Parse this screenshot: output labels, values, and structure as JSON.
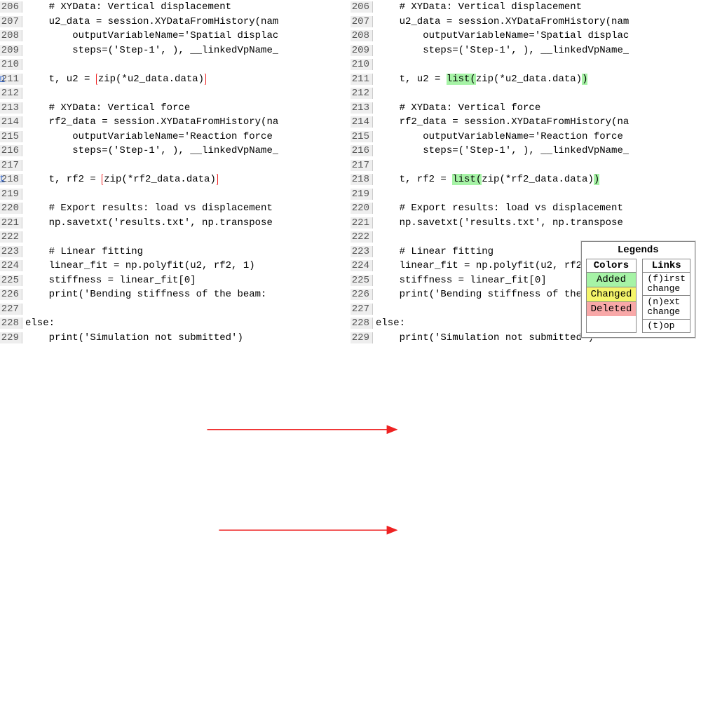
{
  "colors": {
    "added": "#a6f3a6",
    "changed": "#f5f56b",
    "deleted": "#f8a8a8",
    "circle": "#e22",
    "arrow": "#e22",
    "gutter_bg": "#eeeeee"
  },
  "left": {
    "lines": [
      {
        "no": 206,
        "segs": [
          {
            "t": "    # XYData: Vertical displacement"
          }
        ]
      },
      {
        "no": 207,
        "segs": [
          {
            "t": "    u2_data = session.XYDataFromHistory(nam"
          }
        ]
      },
      {
        "no": 208,
        "segs": [
          {
            "t": "        outputVariableName='Spatial displac"
          }
        ]
      },
      {
        "no": 209,
        "segs": [
          {
            "t": "        steps=('Step-1', ), __linkedVpName_"
          }
        ]
      },
      {
        "no": 210,
        "segs": [
          {
            "t": ""
          }
        ]
      },
      {
        "no": 211,
        "gutter": "n",
        "segs": [
          {
            "t": "    t, u2 = "
          },
          {
            "t": "zip(*u2_data.data)",
            "circled": true
          }
        ]
      },
      {
        "no": 212,
        "segs": [
          {
            "t": ""
          }
        ]
      },
      {
        "no": 213,
        "segs": [
          {
            "t": "    # XYData: Vertical force"
          }
        ]
      },
      {
        "no": 214,
        "segs": [
          {
            "t": "    rf2_data = session.XYDataFromHistory(na"
          }
        ]
      },
      {
        "no": 215,
        "segs": [
          {
            "t": "        outputVariableName='Reaction force "
          }
        ]
      },
      {
        "no": 216,
        "segs": [
          {
            "t": "        steps=('Step-1', ), __linkedVpName_"
          }
        ]
      },
      {
        "no": 217,
        "segs": [
          {
            "t": ""
          }
        ]
      },
      {
        "no": 218,
        "gutter": "t",
        "segs": [
          {
            "t": "    t, rf2 = "
          },
          {
            "t": "zip(*rf2_data.data)",
            "circled": true
          }
        ]
      },
      {
        "no": 219,
        "segs": [
          {
            "t": ""
          }
        ]
      },
      {
        "no": 220,
        "segs": [
          {
            "t": "    # Export results: load vs displacement"
          }
        ]
      },
      {
        "no": 221,
        "segs": [
          {
            "t": "    np.savetxt('results.txt', np.transpose"
          }
        ]
      },
      {
        "no": 222,
        "segs": [
          {
            "t": ""
          }
        ]
      },
      {
        "no": 223,
        "segs": [
          {
            "t": "    # Linear fitting"
          }
        ]
      },
      {
        "no": 224,
        "segs": [
          {
            "t": "    linear_fit = np.polyfit(u2, rf2, 1)"
          }
        ]
      },
      {
        "no": 225,
        "segs": [
          {
            "t": "    stiffness = linear_fit[0]"
          }
        ]
      },
      {
        "no": 226,
        "segs": [
          {
            "t": "    print('Bending stiffness of the beam: "
          }
        ]
      },
      {
        "no": 227,
        "segs": [
          {
            "t": ""
          }
        ]
      },
      {
        "no": 228,
        "segs": [
          {
            "t": "else:"
          }
        ]
      },
      {
        "no": 229,
        "segs": [
          {
            "t": "    print('Simulation not submitted')"
          }
        ]
      }
    ]
  },
  "right": {
    "lines": [
      {
        "no": 206,
        "segs": [
          {
            "t": "    # XYData: Vertical displacement"
          }
        ]
      },
      {
        "no": 207,
        "segs": [
          {
            "t": "    u2_data = session.XYDataFromHistory(nam"
          }
        ]
      },
      {
        "no": 208,
        "segs": [
          {
            "t": "        outputVariableName='Spatial displac"
          }
        ]
      },
      {
        "no": 209,
        "segs": [
          {
            "t": "        steps=('Step-1', ), __linkedVpName_"
          }
        ]
      },
      {
        "no": 210,
        "segs": [
          {
            "t": ""
          }
        ]
      },
      {
        "no": 211,
        "arrow": true,
        "segs": [
          {
            "t": "    t, u2 = "
          },
          {
            "t": "list(",
            "hl": "added"
          },
          {
            "t": "zip(*u2_data.data)"
          },
          {
            "t": ")",
            "hl": "added"
          }
        ]
      },
      {
        "no": 212,
        "segs": [
          {
            "t": ""
          }
        ]
      },
      {
        "no": 213,
        "segs": [
          {
            "t": "    # XYData: Vertical force"
          }
        ]
      },
      {
        "no": 214,
        "segs": [
          {
            "t": "    rf2_data = session.XYDataFromHistory(na"
          }
        ]
      },
      {
        "no": 215,
        "segs": [
          {
            "t": "        outputVariableName='Reaction force "
          }
        ]
      },
      {
        "no": 216,
        "segs": [
          {
            "t": "        steps=('Step-1', ), __linkedVpName_"
          }
        ]
      },
      {
        "no": 217,
        "segs": [
          {
            "t": ""
          }
        ]
      },
      {
        "no": 218,
        "arrow": true,
        "segs": [
          {
            "t": "    t, rf2 = "
          },
          {
            "t": "list(",
            "hl": "added"
          },
          {
            "t": "zip(*rf2_data.data)"
          },
          {
            "t": ")",
            "hl": "added"
          }
        ]
      },
      {
        "no": 219,
        "segs": [
          {
            "t": ""
          }
        ]
      },
      {
        "no": 220,
        "segs": [
          {
            "t": "    # Export results: load vs displacement"
          }
        ]
      },
      {
        "no": 221,
        "segs": [
          {
            "t": "    np.savetxt('results.txt', np.transpose"
          }
        ]
      },
      {
        "no": 222,
        "segs": [
          {
            "t": ""
          }
        ]
      },
      {
        "no": 223,
        "segs": [
          {
            "t": "    # Linear fitting"
          }
        ]
      },
      {
        "no": 224,
        "segs": [
          {
            "t": "    linear_fit = np.polyfit(u2, rf2, 1)"
          }
        ]
      },
      {
        "no": 225,
        "segs": [
          {
            "t": "    stiffness = linear_fit[0]"
          }
        ]
      },
      {
        "no": 226,
        "segs": [
          {
            "t": "    print('Bending stiffness of the beam: "
          }
        ]
      },
      {
        "no": 227,
        "segs": [
          {
            "t": ""
          }
        ]
      },
      {
        "no": 228,
        "segs": [
          {
            "t": "else:"
          }
        ]
      },
      {
        "no": 229,
        "segs": [
          {
            "t": "    print('Simulation not submitted')"
          }
        ]
      }
    ]
  },
  "legends": {
    "title": "Legends",
    "colors_title": "Colors",
    "links_title": "Links",
    "colors": [
      {
        "label": "Added",
        "class": "hl-added"
      },
      {
        "label": "Changed",
        "class": "hl-changed"
      },
      {
        "label": "Deleted",
        "class": "hl-deleted"
      }
    ],
    "links": [
      {
        "a": "(f)irst",
        "b": "change"
      },
      {
        "a": "(n)ext",
        "b": "change"
      },
      {
        "a": "(t)op",
        "b": ""
      }
    ]
  },
  "arrows": [
    {
      "from_line": 211,
      "to_line": 211
    },
    {
      "from_line": 218,
      "to_line": 218
    }
  ],
  "paneWidth": 500,
  "lineHeight": 20.5
}
